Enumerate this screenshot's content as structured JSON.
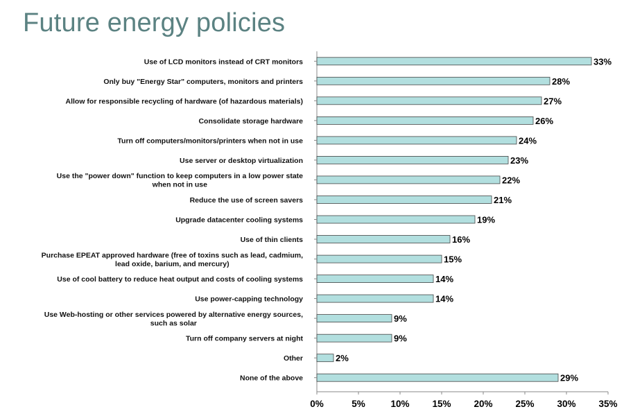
{
  "page": {
    "title": "Future energy policies"
  },
  "colors": {
    "bar_fill": "#b2dfdf",
    "bar_stroke": "#444444",
    "title": "#5b8282"
  },
  "chart_data": {
    "type": "bar",
    "orientation": "horizontal",
    "categories": [
      [
        "Use of LCD monitors instead of CRT monitors"
      ],
      [
        "Only buy \"Energy Star\" computers, monitors and printers"
      ],
      [
        "Allow for responsible recycling of hardware (of hazardous materials)"
      ],
      [
        "Consolidate storage hardware"
      ],
      [
        "Turn off computers/monitors/printers when not in use"
      ],
      [
        "Use server or desktop virtualization"
      ],
      [
        "Use the \"power down\" function to keep computers in a low power state",
        "when not in use"
      ],
      [
        "Reduce the use of screen savers"
      ],
      [
        "Upgrade datacenter cooling systems"
      ],
      [
        "Use of thin clients"
      ],
      [
        "Purchase EPEAT approved hardware (free of toxins such as lead, cadmium,",
        "lead oxide, barium, and mercury)"
      ],
      [
        "Use of cool battery to reduce heat output and costs of cooling systems"
      ],
      [
        "Use power-capping technology"
      ],
      [
        "Use Web-hosting or other services powered by alternative energy sources,",
        "such as solar"
      ],
      [
        "Turn off company servers at night"
      ],
      [
        "Other"
      ],
      [
        "None of the above"
      ]
    ],
    "values": [
      33,
      28,
      27,
      26,
      24,
      23,
      22,
      21,
      19,
      16,
      15,
      14,
      14,
      9,
      9,
      2,
      29
    ],
    "data_labels": [
      "33%",
      "28%",
      "27%",
      "26%",
      "24%",
      "23%",
      "22%",
      "21%",
      "19%",
      "16%",
      "15%",
      "14%",
      "14%",
      "9%",
      "9%",
      "2%",
      "29%"
    ],
    "xlim": [
      0,
      35
    ],
    "xticks": [
      0,
      5,
      10,
      15,
      20,
      25,
      30,
      35
    ],
    "xtick_labels": [
      "0%",
      "5%",
      "10%",
      "15%",
      "20%",
      "25%",
      "30%",
      "35%"
    ],
    "grid": false,
    "legend": "none"
  }
}
